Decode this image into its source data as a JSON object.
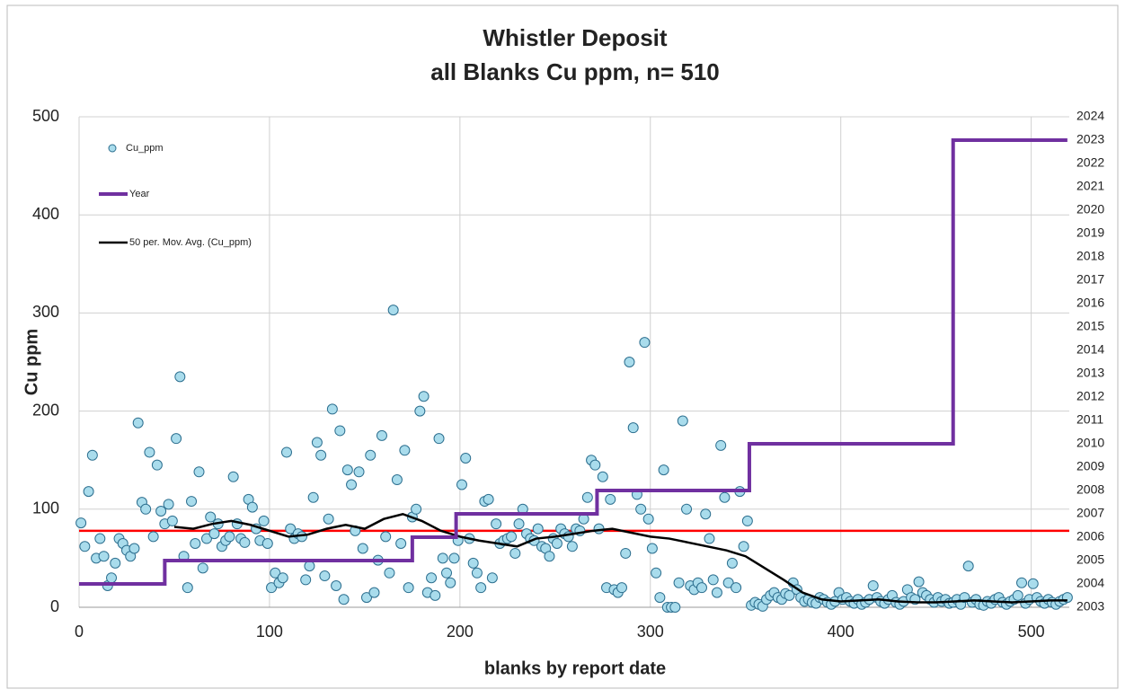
{
  "chart_data": {
    "type": "scatter",
    "title": [
      "Whistler Deposit",
      "all Blanks Cu ppm, n= 510"
    ],
    "x_label": "blanks by report date",
    "y_label": "Cu ppm",
    "xlim": [
      0,
      520
    ],
    "xticks": [
      0,
      100,
      200,
      300,
      400,
      500
    ],
    "ylim": [
      0,
      500
    ],
    "yticks": [
      0,
      100,
      200,
      300,
      400,
      500
    ],
    "y2lim": [
      2003,
      2024
    ],
    "y2ticks": [
      2003,
      2004,
      2005,
      2006,
      2007,
      2008,
      2009,
      2010,
      2011,
      2012,
      2013,
      2014,
      2015,
      2016,
      2017,
      2018,
      2019,
      2020,
      2021,
      2022,
      2023,
      2024
    ],
    "grid": true,
    "legend": "upper left",
    "reference_line": {
      "value": 78,
      "color": "#ff0000"
    },
    "series": [
      {
        "name": "Cu_ppm",
        "type": "scatter",
        "color": "#a9dcec",
        "edge_color": "#2d6f8f",
        "x": [
          1,
          3,
          5,
          7,
          9,
          11,
          13,
          15,
          17,
          19,
          21,
          23,
          25,
          27,
          29,
          31,
          33,
          35,
          37,
          39,
          41,
          43,
          45,
          47,
          49,
          51,
          53,
          55,
          57,
          59,
          61,
          63,
          65,
          67,
          69,
          71,
          73,
          75,
          77,
          79,
          81,
          83,
          85,
          87,
          89,
          91,
          93,
          95,
          97,
          99,
          101,
          103,
          105,
          107,
          109,
          111,
          113,
          115,
          117,
          119,
          121,
          123,
          125,
          127,
          129,
          131,
          133,
          135,
          137,
          139,
          141,
          143,
          145,
          147,
          149,
          151,
          153,
          155,
          157,
          159,
          161,
          163,
          165,
          167,
          169,
          171,
          173,
          175,
          177,
          179,
          181,
          183,
          185,
          187,
          189,
          191,
          193,
          195,
          197,
          199,
          201,
          203,
          205,
          207,
          209,
          211,
          213,
          215,
          217,
          219,
          221,
          223,
          225,
          227,
          229,
          231,
          233,
          235,
          237,
          239,
          241,
          243,
          245,
          247,
          249,
          251,
          253,
          255,
          257,
          259,
          261,
          263,
          265,
          267,
          269,
          271,
          273,
          275,
          277,
          279,
          281,
          283,
          285,
          287,
          289,
          291,
          293,
          295,
          297,
          299,
          301,
          303,
          305,
          307,
          309,
          311,
          313,
          315,
          317,
          319,
          321,
          323,
          325,
          327,
          329,
          331,
          333,
          335,
          337,
          339,
          341,
          343,
          345,
          347,
          349,
          351,
          353,
          355,
          357,
          359,
          361,
          363,
          365,
          367,
          369,
          371,
          373,
          375,
          377,
          379,
          381,
          383,
          385,
          387,
          389,
          391,
          393,
          395,
          397,
          399,
          401,
          403,
          405,
          407,
          409,
          411,
          413,
          415,
          417,
          419,
          421,
          423,
          425,
          427,
          429,
          431,
          433,
          435,
          437,
          439,
          441,
          443,
          445,
          447,
          449,
          451,
          453,
          455,
          457,
          459,
          461,
          463,
          465,
          467,
          469,
          471,
          473,
          475,
          477,
          479,
          481,
          483,
          485,
          487,
          489,
          491,
          493,
          495,
          497,
          499,
          501,
          503,
          505,
          507,
          509,
          511,
          513,
          515,
          517,
          519
        ],
        "values": [
          86,
          62,
          118,
          155,
          50,
          70,
          52,
          22,
          30,
          45,
          70,
          65,
          58,
          52,
          60,
          188,
          107,
          100,
          158,
          72,
          145,
          98,
          85,
          105,
          88,
          172,
          235,
          52,
          20,
          108,
          65,
          138,
          40,
          70,
          92,
          75,
          85,
          62,
          68,
          72,
          133,
          85,
          70,
          66,
          110,
          102,
          80,
          68,
          88,
          65,
          20,
          35,
          25,
          30,
          158,
          80,
          70,
          75,
          72,
          28,
          42,
          112,
          168,
          155,
          32,
          90,
          202,
          22,
          180,
          8,
          140,
          125,
          78,
          138,
          60,
          10,
          155,
          15,
          48,
          175,
          72,
          35,
          303,
          130,
          65,
          160,
          20,
          92,
          100,
          200,
          215,
          15,
          30,
          12,
          172,
          50,
          35,
          25,
          50,
          68,
          125,
          152,
          70,
          45,
          35,
          20,
          108,
          110,
          30,
          85,
          65,
          68,
          70,
          72,
          55,
          85,
          100,
          75,
          70,
          68,
          80,
          62,
          60,
          52,
          70,
          65,
          80,
          75,
          72,
          62,
          80,
          78,
          90,
          112,
          150,
          145,
          80,
          133,
          20,
          110,
          18,
          15,
          20,
          55,
          250,
          183,
          115,
          100,
          270,
          90,
          60,
          35,
          10,
          140,
          0,
          0,
          0,
          25,
          190,
          100,
          22,
          18,
          25,
          20,
          95,
          70,
          28,
          15,
          165,
          112,
          25,
          45,
          20,
          118,
          62,
          88,
          2,
          5,
          3,
          1,
          8,
          12,
          15,
          10,
          8,
          14,
          12,
          25,
          18,
          10,
          6,
          8,
          5,
          4,
          10,
          8,
          5,
          3,
          6,
          15,
          8,
          10,
          6,
          4,
          8,
          3,
          5,
          8,
          22,
          10,
          6,
          4,
          8,
          12,
          5,
          3,
          6,
          18,
          10,
          8,
          26,
          15,
          12,
          8,
          5,
          10,
          6,
          8,
          4,
          5,
          8,
          3,
          10,
          42,
          5,
          8,
          3,
          2,
          6,
          4,
          8,
          10,
          5,
          3,
          6,
          8,
          12,
          25,
          4,
          8,
          24,
          10,
          6,
          4,
          8,
          5,
          3,
          6,
          8,
          10
        ]
      },
      {
        "name": "Year",
        "type": "line",
        "axis": "y2",
        "color": "#7030a0",
        "x": [
          0,
          45,
          45,
          175,
          175,
          198,
          198,
          272,
          272,
          352,
          352,
          459,
          459,
          519
        ],
        "values": [
          2004,
          2004,
          2005,
          2005,
          2006,
          2006,
          2007,
          2007,
          2008,
          2008,
          2010,
          2010,
          2023,
          2023
        ]
      },
      {
        "name": "50 per. Mov. Avg. (Cu_ppm)",
        "type": "line",
        "color": "#000000",
        "x": [
          50,
          60,
          70,
          80,
          90,
          100,
          110,
          120,
          130,
          140,
          150,
          160,
          170,
          180,
          190,
          200,
          210,
          220,
          230,
          240,
          250,
          260,
          270,
          280,
          290,
          300,
          310,
          320,
          330,
          340,
          350,
          360,
          370,
          380,
          390,
          400,
          410,
          420,
          430,
          440,
          450,
          460,
          470,
          480,
          490,
          500,
          510,
          519
        ],
        "values": [
          82,
          80,
          85,
          88,
          84,
          78,
          72,
          74,
          80,
          84,
          80,
          90,
          95,
          88,
          78,
          72,
          68,
          65,
          62,
          70,
          72,
          75,
          78,
          80,
          76,
          72,
          70,
          66,
          62,
          58,
          52,
          40,
          28,
          15,
          8,
          6,
          7,
          8,
          6,
          5,
          5,
          6,
          7,
          6,
          5,
          6,
          7,
          7
        ]
      }
    ]
  }
}
